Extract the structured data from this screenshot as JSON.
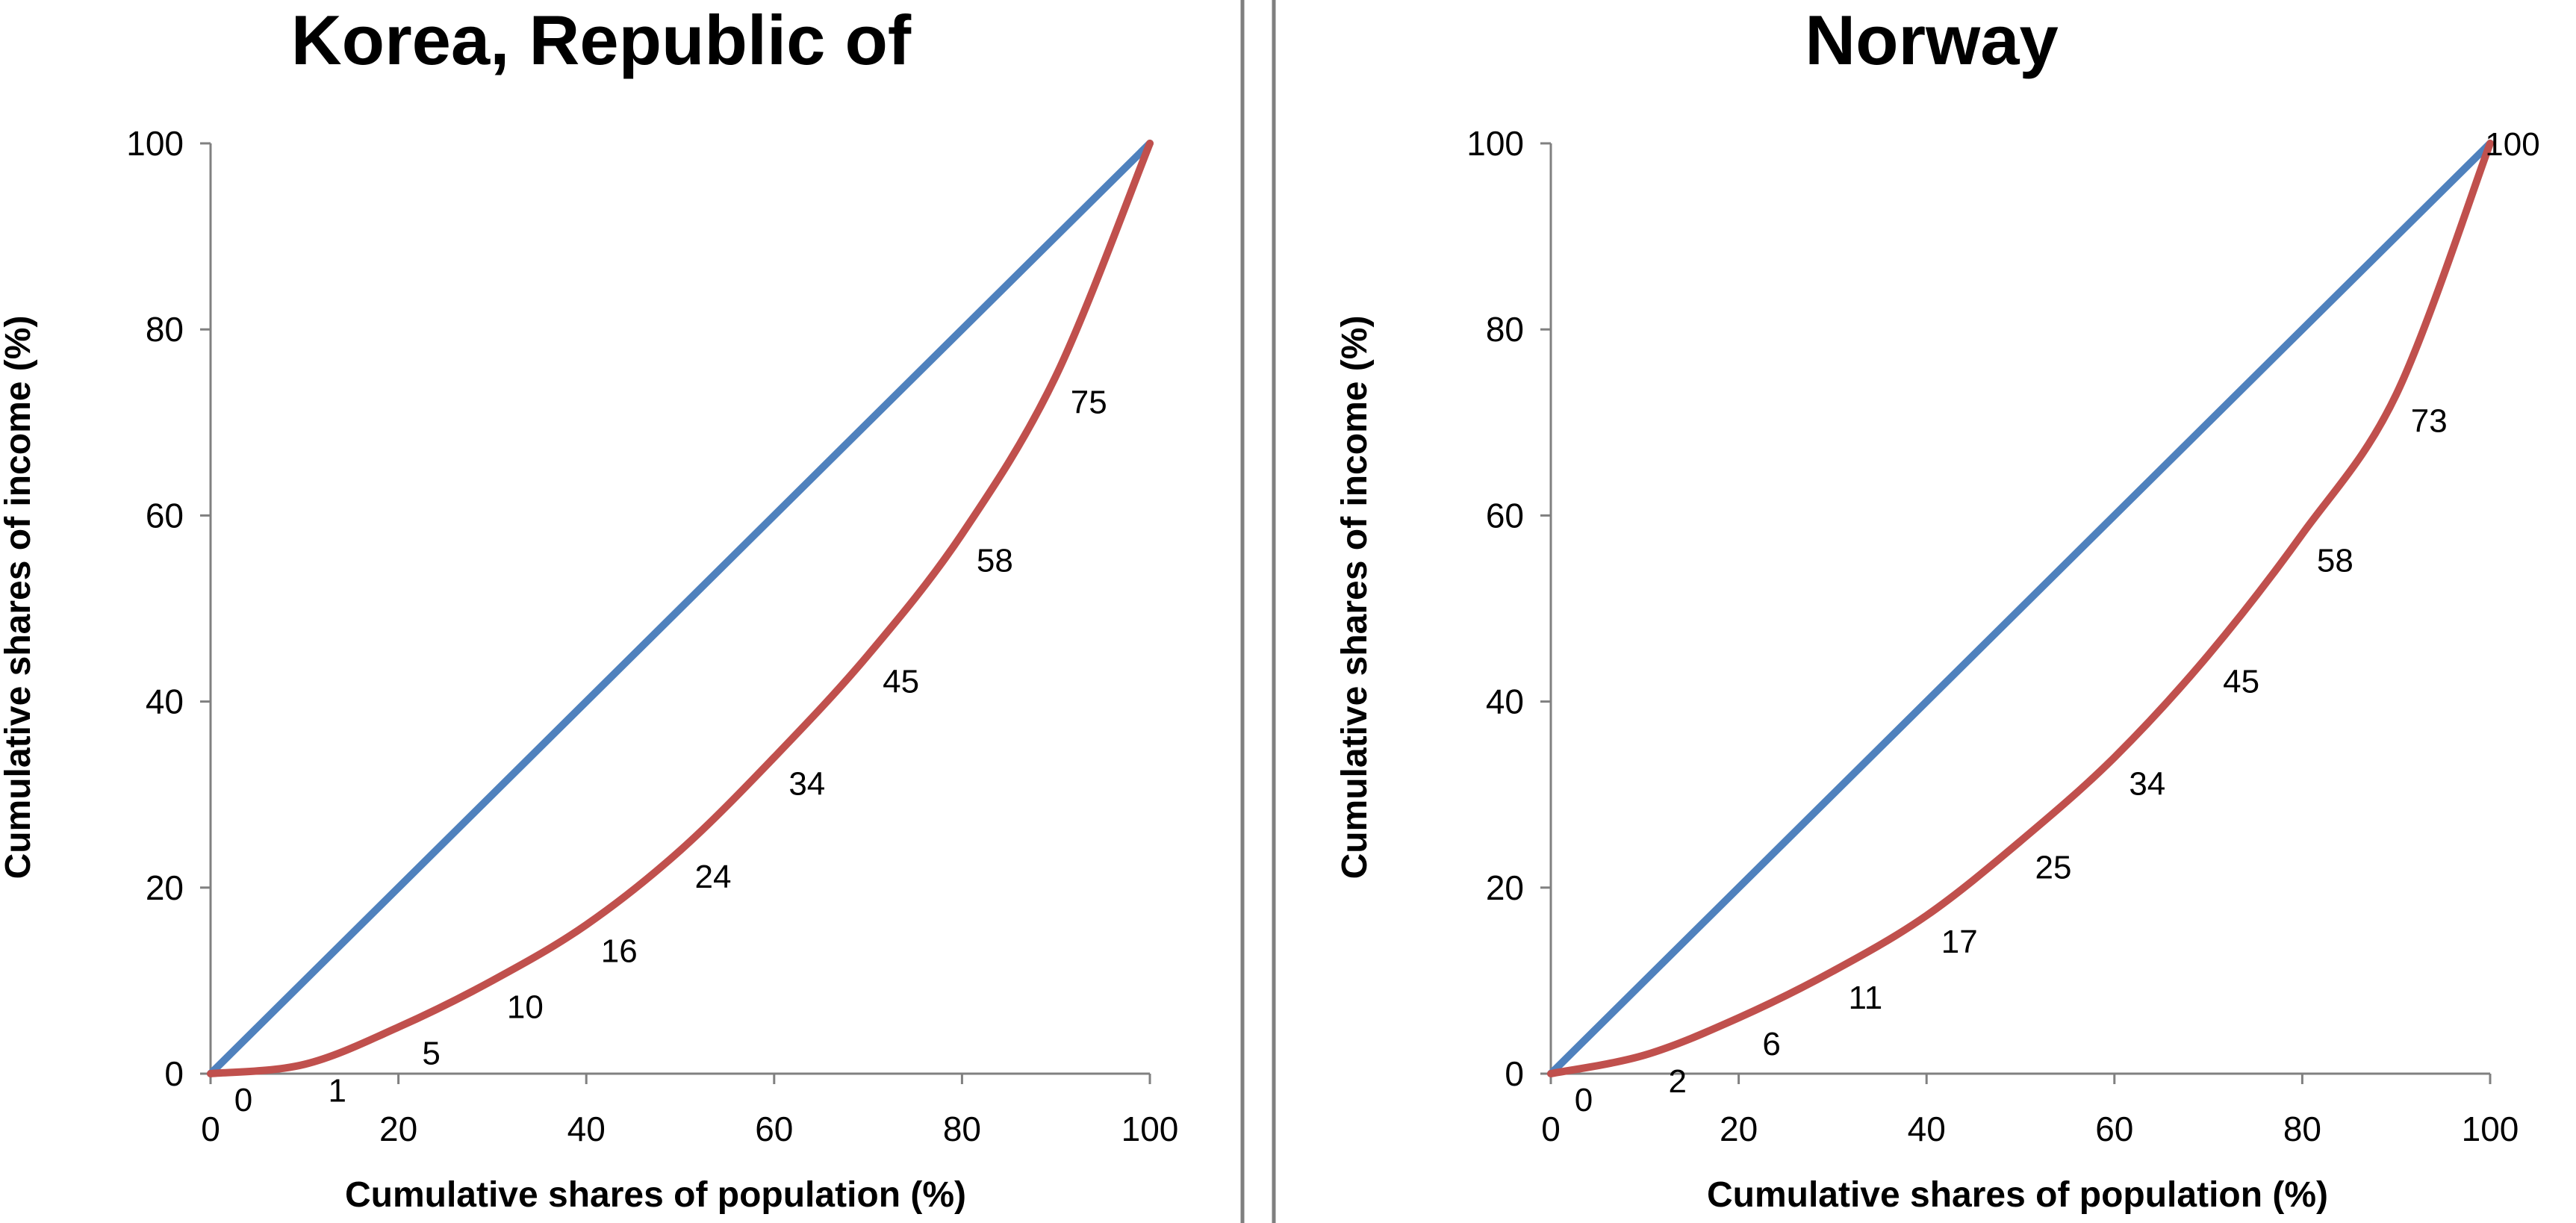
{
  "chart_data": [
    {
      "type": "line",
      "title": "Korea, Republic of",
      "xlabel": "Cumulative shares of population (%)",
      "ylabel": "Cumulative shares of income (%)",
      "xlim": [
        0,
        100
      ],
      "ylim": [
        0,
        100
      ],
      "xticks": [
        "0",
        "20",
        "40",
        "60",
        "80",
        "100"
      ],
      "yticks": [
        "0",
        "20",
        "40",
        "60",
        "80",
        "100"
      ],
      "grid": false,
      "series": [
        {
          "role": "equality",
          "color": "#4F81BD",
          "x": [
            0,
            100
          ],
          "y": [
            0,
            100
          ]
        },
        {
          "role": "lorenz",
          "color": "#C0504D",
          "x": [
            0,
            10,
            20,
            30,
            40,
            50,
            60,
            70,
            80,
            90,
            100
          ],
          "y": [
            0,
            1,
            5,
            10,
            16,
            24,
            34,
            45,
            58,
            75,
            100
          ],
          "labels": [
            "0",
            "1",
            "5",
            "10",
            "16",
            "24",
            "34",
            "45",
            "58",
            "75",
            ""
          ]
        }
      ]
    },
    {
      "type": "line",
      "title": "Norway",
      "xlabel": "Cumulative shares of population (%)",
      "ylabel": "Cumulative shares of income (%)",
      "xlim": [
        0,
        100
      ],
      "ylim": [
        0,
        100
      ],
      "xticks": [
        "0",
        "20",
        "40",
        "60",
        "80",
        "100"
      ],
      "yticks": [
        "0",
        "20",
        "40",
        "60",
        "80",
        "100"
      ],
      "grid": false,
      "series": [
        {
          "role": "equality",
          "color": "#4F81BD",
          "x": [
            0,
            100
          ],
          "y": [
            0,
            100
          ]
        },
        {
          "role": "lorenz",
          "color": "#C0504D",
          "x": [
            0,
            10,
            20,
            30,
            40,
            50,
            60,
            70,
            80,
            90,
            100
          ],
          "y": [
            0,
            2,
            6,
            11,
            17,
            25,
            34,
            45,
            58,
            73,
            100
          ],
          "labels": [
            "0",
            "2",
            "6",
            "11",
            "17",
            "25",
            "34",
            "45",
            "58",
            "73",
            "100"
          ]
        }
      ]
    }
  ]
}
